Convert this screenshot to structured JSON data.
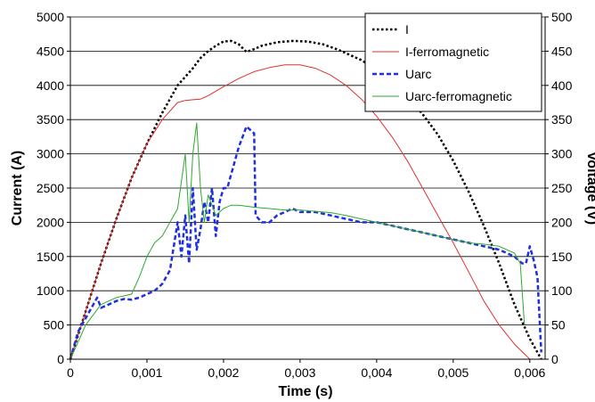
{
  "chart_data": {
    "type": "line",
    "xlabel": "Time (s)",
    "ylabel": "Current (A)",
    "y2label": "Voltage (V)",
    "xlim": [
      0,
      0.0062
    ],
    "ylim": [
      0,
      5000
    ],
    "y2lim": [
      0,
      500
    ],
    "x_ticks": [
      {
        "value": 0,
        "label": "0"
      },
      {
        "value": 0.001,
        "label": "0,001"
      },
      {
        "value": 0.002,
        "label": "0,002"
      },
      {
        "value": 0.003,
        "label": "0,003"
      },
      {
        "value": 0.004,
        "label": "0,004"
      },
      {
        "value": 0.005,
        "label": "0,005"
      },
      {
        "value": 0.006,
        "label": "0,006"
      }
    ],
    "y_ticks": [
      "0",
      "500",
      "1000",
      "1500",
      "2000",
      "2500",
      "3000",
      "3500",
      "4000",
      "4500",
      "5000"
    ],
    "y2_ticks": [
      "0",
      "50",
      "100",
      "150",
      "200",
      "250",
      "300",
      "350",
      "400",
      "450",
      "500"
    ],
    "grid": "horizontal",
    "legend_position": "top-right",
    "series": [
      {
        "name": "I",
        "axis": "left",
        "color": "#000000",
        "style": "dotted",
        "width": 2.5,
        "x": [
          0,
          0.0002,
          0.0004,
          0.0006,
          0.0008,
          0.001,
          0.0012,
          0.0014,
          0.0016,
          0.0017,
          0.0018,
          0.0019,
          0.002,
          0.0021,
          0.0022,
          0.0023,
          0.0024,
          0.0025,
          0.0027,
          0.0029,
          0.0031,
          0.0033,
          0.0035,
          0.0038,
          0.004,
          0.0042,
          0.0044,
          0.0046,
          0.0048,
          0.005,
          0.0052,
          0.0054,
          0.0056,
          0.0058,
          0.006,
          0.0061,
          0.00615
        ],
        "y": [
          0,
          700,
          1400,
          2050,
          2650,
          3150,
          3600,
          4000,
          4250,
          4400,
          4500,
          4580,
          4640,
          4650,
          4600,
          4490,
          4530,
          4580,
          4630,
          4650,
          4640,
          4600,
          4520,
          4370,
          4230,
          4050,
          3840,
          3580,
          3280,
          2900,
          2450,
          1950,
          1400,
          800,
          300,
          100,
          0
        ]
      },
      {
        "name": "I-ferromagnetic",
        "axis": "left",
        "color": "#e03030",
        "style": "solid",
        "width": 1,
        "x": [
          0,
          0.0002,
          0.0004,
          0.0006,
          0.0008,
          0.001,
          0.0012,
          0.0014,
          0.0015,
          0.0016,
          0.0017,
          0.0018,
          0.002,
          0.0022,
          0.0024,
          0.0026,
          0.0028,
          0.003,
          0.0032,
          0.0034,
          0.0036,
          0.0038,
          0.004,
          0.0042,
          0.0044,
          0.0046,
          0.0048,
          0.005,
          0.0052,
          0.0054,
          0.0056,
          0.0058,
          0.006
        ],
        "y": [
          0,
          700,
          1400,
          2050,
          2650,
          3150,
          3500,
          3750,
          3780,
          3790,
          3800,
          3850,
          3980,
          4100,
          4200,
          4260,
          4300,
          4300,
          4250,
          4150,
          4000,
          3800,
          3550,
          3250,
          2900,
          2500,
          2100,
          1700,
          1280,
          850,
          500,
          220,
          0
        ]
      },
      {
        "name": "Uarc",
        "axis": "right",
        "color": "#1f2fe0",
        "style": "dashed",
        "width": 2.5,
        "x": [
          0,
          0.0001,
          0.0002,
          0.0003,
          0.00035,
          0.0004,
          0.0005,
          0.0006,
          0.0007,
          0.0008,
          0.0009,
          0.001,
          0.0011,
          0.0012,
          0.0013,
          0.0014,
          0.00145,
          0.0015,
          0.00155,
          0.0016,
          0.00165,
          0.0017,
          0.00175,
          0.0018,
          0.00185,
          0.0019,
          0.00195,
          0.002,
          0.00205,
          0.0021,
          0.0022,
          0.0023,
          0.0024,
          0.00242,
          0.0025,
          0.0026,
          0.0027,
          0.0028,
          0.0029,
          0.003,
          0.0032,
          0.0034,
          0.0036,
          0.0038,
          0.004,
          0.0042,
          0.0044,
          0.0046,
          0.0048,
          0.005,
          0.0052,
          0.0054,
          0.0056,
          0.0058,
          0.0059,
          0.00595,
          0.006,
          0.00605,
          0.0061,
          0.00615
        ],
        "y": [
          0,
          40,
          60,
          80,
          90,
          75,
          80,
          85,
          88,
          87,
          90,
          95,
          100,
          110,
          130,
          200,
          150,
          210,
          140,
          250,
          160,
          190,
          230,
          200,
          250,
          180,
          230,
          250,
          250,
          270,
          310,
          340,
          330,
          210,
          200,
          200,
          210,
          215,
          220,
          215,
          215,
          210,
          205,
          200,
          200,
          195,
          190,
          185,
          180,
          175,
          170,
          165,
          160,
          150,
          140,
          140,
          165,
          145,
          120,
          10
        ]
      },
      {
        "name": "Uarc-ferromagnetic",
        "axis": "right",
        "color": "#2eaa2e",
        "style": "solid",
        "width": 1,
        "x": [
          0,
          0.0002,
          0.0004,
          0.0006,
          0.0008,
          0.0009,
          0.001,
          0.0011,
          0.0012,
          0.0013,
          0.0014,
          0.0015,
          0.00155,
          0.0016,
          0.00165,
          0.0017,
          0.00175,
          0.0018,
          0.0019,
          0.002,
          0.0021,
          0.0022,
          0.0024,
          0.0026,
          0.0028,
          0.003,
          0.0032,
          0.0034,
          0.0036,
          0.0038,
          0.004,
          0.0042,
          0.0044,
          0.0046,
          0.0048,
          0.005,
          0.0052,
          0.0054,
          0.0056,
          0.0058,
          0.005875,
          0.0059,
          0.00593
        ],
        "y": [
          0,
          50,
          80,
          90,
          95,
          120,
          150,
          170,
          180,
          200,
          220,
          300,
          200,
          300,
          345,
          250,
          200,
          240,
          210,
          220,
          225,
          225,
          222,
          220,
          218,
          218,
          216,
          214,
          210,
          205,
          200,
          195,
          190,
          185,
          180,
          175,
          170,
          168,
          165,
          155,
          140,
          100,
          50
        ]
      }
    ]
  }
}
